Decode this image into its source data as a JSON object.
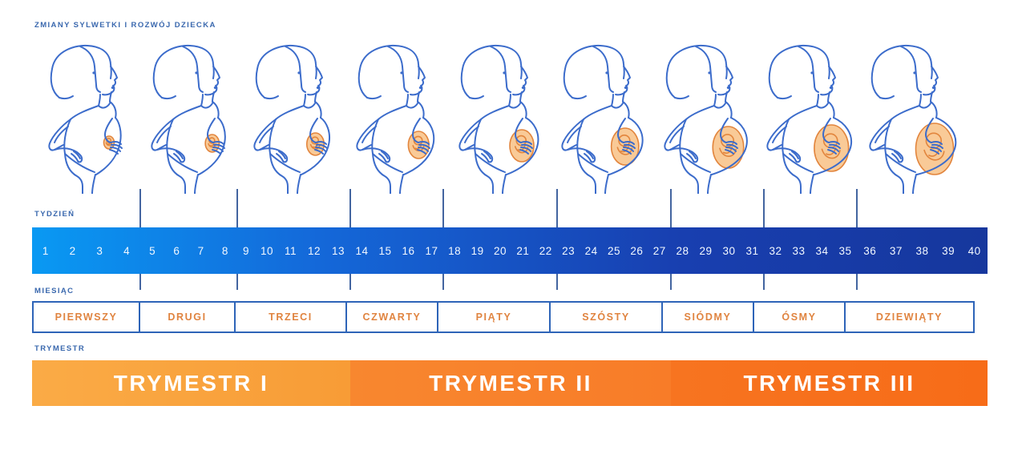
{
  "title": "ZMIANY SYLWETKI I ROZWÓJ DZIECKA",
  "axis_labels": {
    "week": "TYDZIEŃ",
    "month": "MIESIĄC",
    "trimester": "TRYMESTR"
  },
  "months": [
    {
      "name": "PIERWSZY",
      "weeks": [
        1,
        2,
        3,
        4
      ]
    },
    {
      "name": "DRUGI",
      "weeks": [
        5,
        6,
        7,
        8
      ]
    },
    {
      "name": "TRZECI",
      "weeks": [
        9,
        10,
        11,
        12,
        13
      ]
    },
    {
      "name": "CZWARTY",
      "weeks": [
        14,
        15,
        16,
        17
      ]
    },
    {
      "name": "PIĄTY",
      "weeks": [
        18,
        19,
        20,
        21,
        22
      ]
    },
    {
      "name": "SZÓSTY",
      "weeks": [
        23,
        24,
        25,
        26,
        27
      ]
    },
    {
      "name": "SIÓDMY",
      "weeks": [
        28,
        29,
        30,
        31
      ]
    },
    {
      "name": "ÓSMY",
      "weeks": [
        32,
        33,
        34,
        35
      ]
    },
    {
      "name": "DZIEWIĄTY",
      "weeks": [
        36,
        37,
        38,
        39,
        40
      ]
    }
  ],
  "trimesters": [
    {
      "label": "TRYMESTR I",
      "color_start": "#FAAB46",
      "color_end": "#F89C36"
    },
    {
      "label": "TRYMESTR II",
      "color_start": "#F8872F",
      "color_end": "#F87C28"
    },
    {
      "label": "TRYMESTR III",
      "color_start": "#F77420",
      "color_end": "#F76C18"
    }
  ],
  "figures": [
    {
      "name": "pregnant-woman-month-1",
      "stage": 0
    },
    {
      "name": "pregnant-woman-month-2",
      "stage": 1
    },
    {
      "name": "pregnant-woman-month-3",
      "stage": 2
    },
    {
      "name": "pregnant-woman-month-4",
      "stage": 3
    },
    {
      "name": "pregnant-woman-month-5",
      "stage": 4
    },
    {
      "name": "pregnant-woman-month-6",
      "stage": 5
    },
    {
      "name": "pregnant-woman-month-7",
      "stage": 6
    },
    {
      "name": "pregnant-woman-month-8",
      "stage": 7
    },
    {
      "name": "pregnant-woman-month-9",
      "stage": 8
    }
  ],
  "colors": {
    "label_blue": "#3A68AE",
    "figure_line": "#3C6CCB",
    "fetus_fill": "#F9CA97",
    "fetus_line": "#E2853D",
    "week_bar_start": "#0999F3",
    "week_bar_end": "#16379D",
    "week_text": "#F2F8FF",
    "month_border": "#2E64B8",
    "month_text": "#E08440",
    "divider": "#2F5496",
    "trimester_text": "#FFFFFF"
  }
}
